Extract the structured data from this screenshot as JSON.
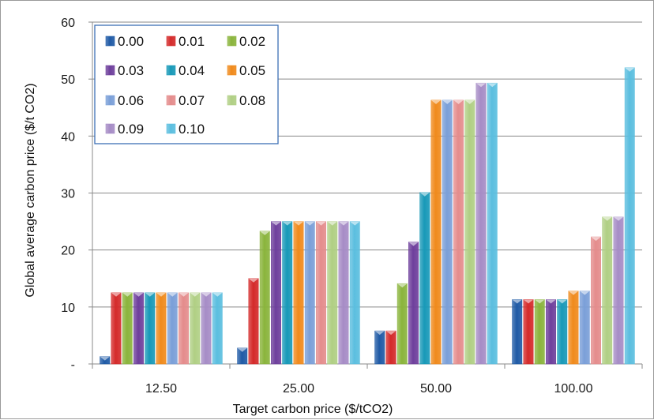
{
  "chart_data": {
    "type": "bar",
    "title": "",
    "xlabel": "Target carbon price ($/tCO2)",
    "ylabel": "Global average carbon price ($/t CO2)",
    "categories": [
      "12.50",
      "25.00",
      "50.00",
      "100.00"
    ],
    "ylim": [
      0,
      60
    ],
    "yticks": [
      0,
      10,
      20,
      30,
      40,
      50,
      60
    ],
    "ytick_labels": [
      "-",
      "10",
      "20",
      "30",
      "40",
      "50",
      "60"
    ],
    "grid": true,
    "legend_position": "top-left",
    "series": [
      {
        "name": "0.00",
        "color": "#1f5aa6",
        "values": [
          1.3,
          2.8,
          5.8,
          11.3
        ]
      },
      {
        "name": "0.01",
        "color": "#d42a2a",
        "values": [
          12.5,
          15.0,
          5.8,
          11.3
        ]
      },
      {
        "name": "0.02",
        "color": "#8ab43c",
        "values": [
          12.5,
          23.3,
          14.1,
          11.3
        ]
      },
      {
        "name": "0.03",
        "color": "#6e3f9c",
        "values": [
          12.5,
          25.0,
          21.4,
          11.3
        ]
      },
      {
        "name": "0.04",
        "color": "#1899b8",
        "values": [
          12.5,
          25.0,
          30.1,
          11.3
        ]
      },
      {
        "name": "0.05",
        "color": "#f08a1c",
        "values": [
          12.5,
          25.0,
          46.3,
          12.8
        ]
      },
      {
        "name": "0.06",
        "color": "#7a9fd8",
        "values": [
          12.5,
          25.0,
          46.3,
          12.8
        ]
      },
      {
        "name": "0.07",
        "color": "#e48c8c",
        "values": [
          12.5,
          25.0,
          46.3,
          22.3
        ]
      },
      {
        "name": "0.08",
        "color": "#b0cf84",
        "values": [
          12.5,
          25.0,
          46.3,
          25.8
        ]
      },
      {
        "name": "0.09",
        "color": "#a68cc6",
        "values": [
          12.5,
          25.0,
          49.3,
          25.8
        ]
      },
      {
        "name": "0.10",
        "color": "#5bbedf",
        "values": [
          12.5,
          25.0,
          49.3,
          52.0
        ]
      }
    ]
  }
}
